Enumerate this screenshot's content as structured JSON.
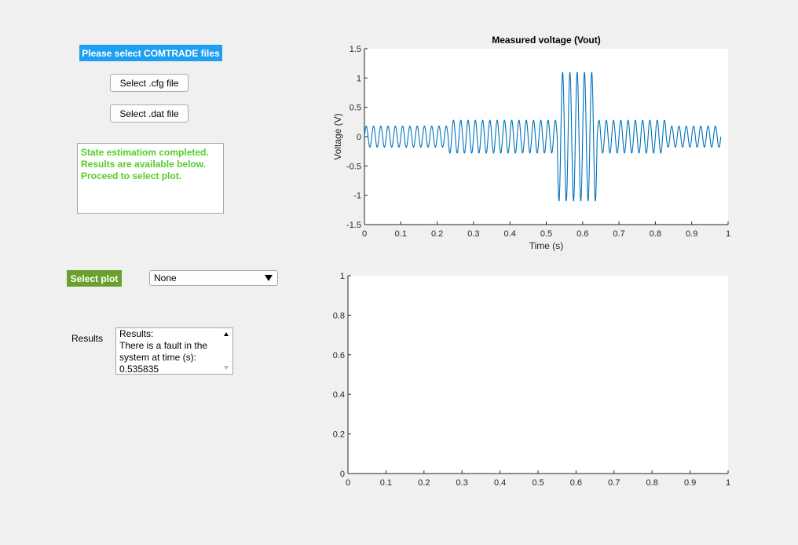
{
  "left_panel": {
    "select_files_banner": "Please select COMTRADE files",
    "cfg_button_label": "Select .cfg file",
    "dat_button_label": "Select .dat file",
    "status_lines": [
      "State estimatiom completed.",
      "Results are available below.",
      "Proceed to select plot."
    ],
    "select_plot_banner": "Select plot",
    "plot_dropdown_value": "None",
    "results_label": "Results",
    "results_lines": [
      "Results:",
      "There is a fault in the",
      "system at time (s):",
      "0.535835"
    ]
  },
  "colors": {
    "blue_banner": "#1e9ff2",
    "green_banner": "#6aa12e",
    "status_text": "#55cc2b",
    "signal_line": "#0072bd"
  },
  "chart_data": [
    {
      "type": "line",
      "title": "Measured voltage (Vout)",
      "xlabel": "Time (s)",
      "ylabel": "Voltage (V)",
      "xlim": [
        0,
        1
      ],
      "ylim": [
        -1.5,
        1.5
      ],
      "xticks": [
        "0",
        "0.1",
        "0.2",
        "0.3",
        "0.4",
        "0.5",
        "0.6",
        "0.7",
        "0.8",
        "0.9",
        "1"
      ],
      "yticks": [
        "-1.5",
        "-1",
        "-0.5",
        "0",
        "0.5",
        "1",
        "1.5"
      ],
      "series": [
        {
          "frequency_hz": 50,
          "segments": [
            {
              "t_start": 0.0,
              "t_end": 0.23,
              "amplitude": 0.18
            },
            {
              "t_start": 0.23,
              "t_end": 0.53,
              "amplitude": 0.28
            },
            {
              "t_start": 0.53,
              "t_end": 0.64,
              "amplitude": 1.1
            },
            {
              "t_start": 0.64,
              "t_end": 0.83,
              "amplitude": 0.28
            },
            {
              "t_start": 0.83,
              "t_end": 0.98,
              "amplitude": 0.18
            }
          ]
        }
      ]
    },
    {
      "type": "line",
      "title": "",
      "xlabel": "",
      "ylabel": "",
      "xlim": [
        0,
        1
      ],
      "ylim": [
        0,
        1
      ],
      "xticks": [
        "0",
        "0.1",
        "0.2",
        "0.3",
        "0.4",
        "0.5",
        "0.6",
        "0.7",
        "0.8",
        "0.9",
        "1"
      ],
      "yticks": [
        "0",
        "0.2",
        "0.4",
        "0.6",
        "0.8",
        "1"
      ],
      "series": []
    }
  ]
}
